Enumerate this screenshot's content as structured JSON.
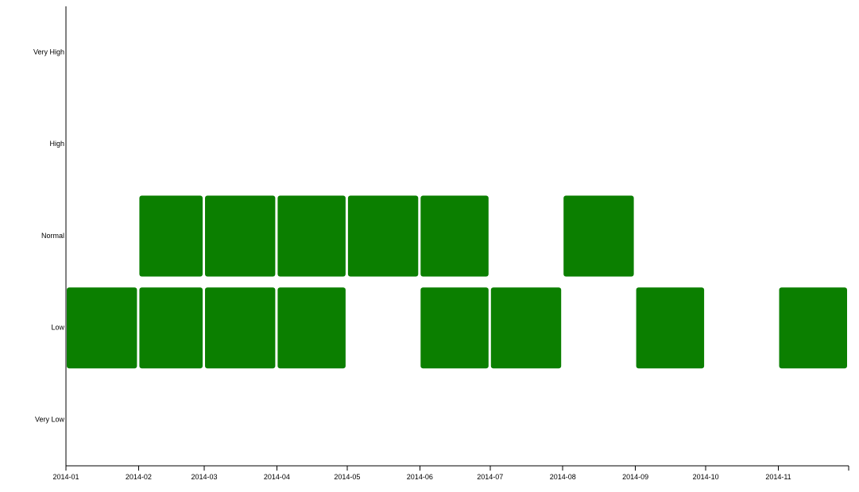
{
  "chart_data": {
    "type": "heatmap",
    "title": "",
    "xlabel": "",
    "ylabel": "",
    "bar_color": "#0b7f00",
    "x_ticks": [
      "2014-01",
      "2014-02",
      "2014-03",
      "2014-04",
      "2014-05",
      "2014-06",
      "2014-07",
      "2014-08",
      "2014-09",
      "2014-10",
      "2014-11"
    ],
    "y_categories": [
      "Very High",
      "High",
      "Normal",
      "Low",
      "Very Low"
    ],
    "x_domain": [
      "2014-01-01",
      "2014-11-30"
    ],
    "blocks": [
      {
        "category": "Low",
        "start": "2014-01-01",
        "end": "2014-01-31"
      },
      {
        "category": "Low",
        "start": "2014-02-01",
        "end": "2014-02-28"
      },
      {
        "category": "Low",
        "start": "2014-03-01",
        "end": "2014-03-31"
      },
      {
        "category": "Low",
        "start": "2014-04-01",
        "end": "2014-04-30"
      },
      {
        "category": "Low",
        "start": "2014-06-01",
        "end": "2014-06-30"
      },
      {
        "category": "Low",
        "start": "2014-07-01",
        "end": "2014-07-31"
      },
      {
        "category": "Low",
        "start": "2014-09-01",
        "end": "2014-09-30"
      },
      {
        "category": "Low",
        "start": "2014-11-01",
        "end": "2014-11-30"
      },
      {
        "category": "Normal",
        "start": "2014-02-01",
        "end": "2014-02-28"
      },
      {
        "category": "Normal",
        "start": "2014-03-01",
        "end": "2014-03-31"
      },
      {
        "category": "Normal",
        "start": "2014-04-01",
        "end": "2014-04-30"
      },
      {
        "category": "Normal",
        "start": "2014-05-01",
        "end": "2014-05-31"
      },
      {
        "category": "Normal",
        "start": "2014-06-01",
        "end": "2014-06-30"
      },
      {
        "category": "Normal",
        "start": "2014-08-01",
        "end": "2014-08-31"
      }
    ]
  }
}
